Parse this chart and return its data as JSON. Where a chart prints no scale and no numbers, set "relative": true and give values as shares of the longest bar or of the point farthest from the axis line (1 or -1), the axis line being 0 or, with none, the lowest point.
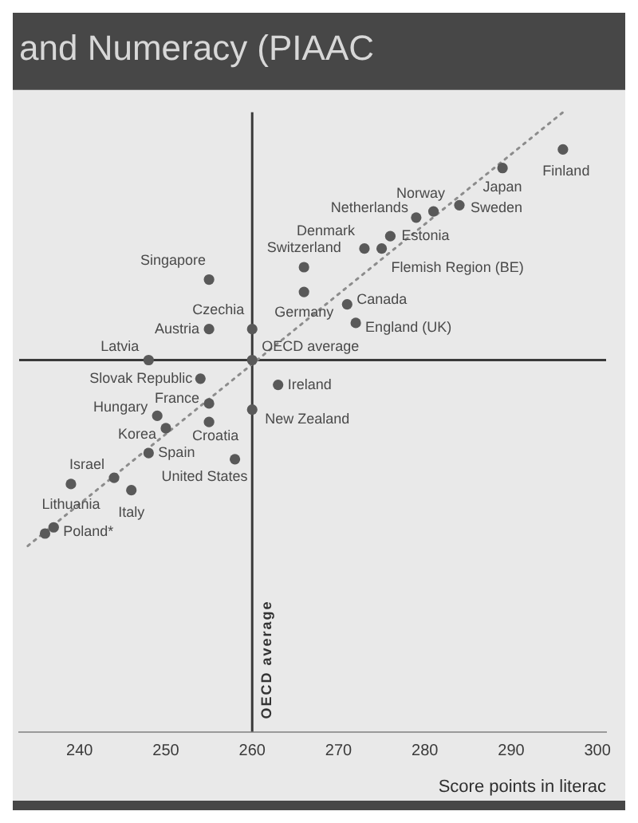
{
  "chart_data": {
    "type": "scatter",
    "title": "and Numeracy (PIAAC",
    "xlabel": "Score points in literac",
    "relative": true,
    "xlim": [
      233,
      301
    ],
    "xticks": [
      240,
      250,
      260,
      270,
      280,
      290,
      300
    ],
    "marker": "circle",
    "series": [
      {
        "name": "Finland",
        "color": "#595959",
        "x": [
          296
        ],
        "values": [
          0.94
        ]
      },
      {
        "name": "Japan",
        "color": "#595959",
        "x": [
          289
        ],
        "values": [
          0.91
        ]
      },
      {
        "name": "Sweden",
        "color": "#595959",
        "x": [
          284
        ],
        "values": [
          0.85
        ]
      },
      {
        "name": "Norway",
        "color": "#595959",
        "x": [
          281
        ],
        "values": [
          0.84
        ]
      },
      {
        "name": "Netherlands",
        "color": "#595959",
        "x": [
          279
        ],
        "values": [
          0.83
        ]
      },
      {
        "name": "Estonia",
        "color": "#595959",
        "x": [
          276
        ],
        "values": [
          0.8
        ]
      },
      {
        "name": "Flemish Region (BE)",
        "color": "#595959",
        "x": [
          275
        ],
        "values": [
          0.78
        ]
      },
      {
        "name": "Denmark",
        "color": "#595959",
        "x": [
          273
        ],
        "values": [
          0.78
        ]
      },
      {
        "name": "Switzerland",
        "color": "#595959",
        "x": [
          266
        ],
        "values": [
          0.75
        ]
      },
      {
        "name": "Germany",
        "color": "#595959",
        "x": [
          266
        ],
        "values": [
          0.71
        ]
      },
      {
        "name": "Canada",
        "color": "#595959",
        "x": [
          271
        ],
        "values": [
          0.69
        ]
      },
      {
        "name": "England (UK)",
        "color": "#595959",
        "x": [
          272
        ],
        "values": [
          0.66
        ]
      },
      {
        "name": "Singapore",
        "color": "#595959",
        "x": [
          255
        ],
        "values": [
          0.73
        ]
      },
      {
        "name": "Czechia",
        "color": "#595959",
        "x": [
          260
        ],
        "values": [
          0.65
        ]
      },
      {
        "name": "OECD average",
        "color": "#595959",
        "x": [
          260
        ],
        "values": [
          0.6
        ]
      },
      {
        "name": "Austria",
        "color": "#595959",
        "x": [
          255
        ],
        "values": [
          0.65
        ]
      },
      {
        "name": "Latvia",
        "color": "#595959",
        "x": [
          248
        ],
        "values": [
          0.6
        ]
      },
      {
        "name": "Slovak Republic",
        "color": "#595959",
        "x": [
          254
        ],
        "values": [
          0.57
        ]
      },
      {
        "name": "Ireland",
        "color": "#595959",
        "x": [
          263
        ],
        "values": [
          0.56
        ]
      },
      {
        "name": "France",
        "color": "#595959",
        "x": [
          255
        ],
        "values": [
          0.53
        ]
      },
      {
        "name": "New Zealand",
        "color": "#595959",
        "x": [
          260
        ],
        "values": [
          0.52
        ]
      },
      {
        "name": "Hungary",
        "color": "#595959",
        "x": [
          249
        ],
        "values": [
          0.51
        ]
      },
      {
        "name": "Korea",
        "color": "#595959",
        "x": [
          250
        ],
        "values": [
          0.49
        ]
      },
      {
        "name": "Croatia",
        "color": "#595959",
        "x": [
          255
        ],
        "values": [
          0.5
        ]
      },
      {
        "name": "United States",
        "color": "#595959",
        "x": [
          258
        ],
        "values": [
          0.44
        ]
      },
      {
        "name": "Spain",
        "color": "#595959",
        "x": [
          248
        ],
        "values": [
          0.45
        ]
      },
      {
        "name": "Israel",
        "color": "#595959",
        "x": [
          244
        ],
        "values": [
          0.41
        ]
      },
      {
        "name": "Italy",
        "color": "#595959",
        "x": [
          246
        ],
        "values": [
          0.39
        ]
      },
      {
        "name": "Lithuania",
        "color": "#595959",
        "x": [
          239
        ],
        "values": [
          0.4
        ]
      },
      {
        "name": "Poland*",
        "color": "#595959",
        "x": [
          237
        ],
        "values": [
          0.33
        ]
      },
      {
        "color": "#595959",
        "x": [
          236
        ],
        "values": [
          0.32
        ]
      },
      {
        "type": "line",
        "color": "#8c8c8c",
        "line_style": "dotted",
        "marker": "none",
        "x": [
          234,
          296
        ],
        "values": [
          0.3,
          1.0
        ]
      }
    ],
    "ref_lines": [
      {
        "axis": "x",
        "value": 260,
        "label": "OECD average"
      },
      {
        "axis": "y",
        "value": 0.6
      }
    ]
  }
}
